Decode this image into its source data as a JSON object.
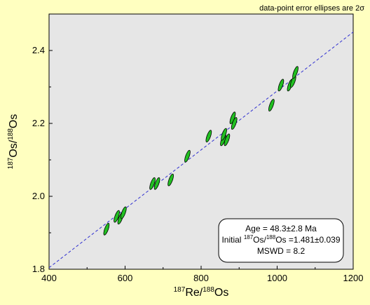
{
  "colors": {
    "background": "#ffffc0",
    "plot_area": "#e6e6e6",
    "ellipse_fill": "#22c022",
    "ellipse_stroke": "#000000",
    "regression_line": "#3030d0"
  },
  "chart_data": {
    "type": "scatter",
    "title": "",
    "xlabel": {
      "sup1": "187",
      "base1": "Re/",
      "sup2": "188",
      "base2": "Os"
    },
    "ylabel": {
      "sup1": "187",
      "base1": "Os/",
      "sup2": "188",
      "base2": "Os"
    },
    "xlim": [
      400,
      1200
    ],
    "ylim": [
      1.8,
      2.5
    ],
    "xticks": [
      "400",
      "600",
      "800",
      "1000",
      "1200"
    ],
    "yticks": [
      "1.8",
      "2.0",
      "2.2",
      "2.4"
    ],
    "grid": false,
    "marker": "error-ellipse",
    "note": "data-point error ellipses are 2σ",
    "regression": {
      "slope": 0.000808,
      "intercept": 1.481
    },
    "results": {
      "age": "Age = 48.3±2.8 Ma",
      "initial_pre": "Initial ",
      "initial_sup1": "187",
      "initial_mid": "Os/",
      "initial_sup2": "188",
      "initial_post": "Os =1.481±0.039",
      "mswd": "MSWD = 8.2"
    },
    "points": [
      {
        "x": 551,
        "y": 1.91
      },
      {
        "x": 578,
        "y": 1.945
      },
      {
        "x": 588,
        "y": 1.94
      },
      {
        "x": 596,
        "y": 1.955
      },
      {
        "x": 672,
        "y": 2.035
      },
      {
        "x": 684,
        "y": 2.035
      },
      {
        "x": 720,
        "y": 2.045
      },
      {
        "x": 764,
        "y": 2.11
      },
      {
        "x": 820,
        "y": 2.165
      },
      {
        "x": 858,
        "y": 2.155
      },
      {
        "x": 860,
        "y": 2.17
      },
      {
        "x": 868,
        "y": 2.155
      },
      {
        "x": 883,
        "y": 2.215
      },
      {
        "x": 887,
        "y": 2.2
      },
      {
        "x": 985,
        "y": 2.25
      },
      {
        "x": 1010,
        "y": 2.305
      },
      {
        "x": 1034,
        "y": 2.305
      },
      {
        "x": 1042,
        "y": 2.315
      },
      {
        "x": 1048,
        "y": 2.34
      }
    ]
  }
}
